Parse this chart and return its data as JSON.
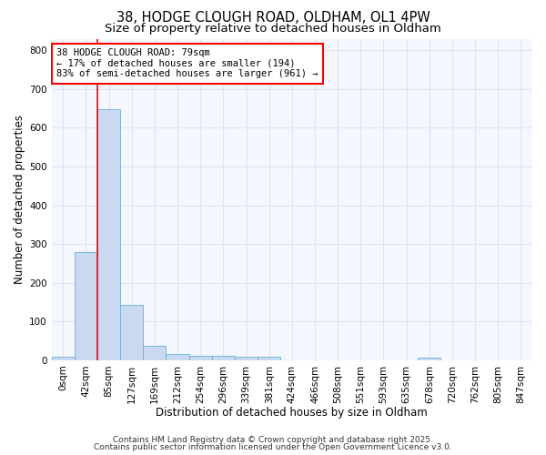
{
  "title_line1": "38, HODGE CLOUGH ROAD, OLDHAM, OL1 4PW",
  "title_line2": "Size of property relative to detached houses in Oldham",
  "xlabel": "Distribution of detached houses by size in Oldham",
  "ylabel": "Number of detached properties",
  "bar_labels": [
    "0sqm",
    "42sqm",
    "85sqm",
    "127sqm",
    "169sqm",
    "212sqm",
    "254sqm",
    "296sqm",
    "339sqm",
    "381sqm",
    "424sqm",
    "466sqm",
    "508sqm",
    "551sqm",
    "593sqm",
    "635sqm",
    "678sqm",
    "720sqm",
    "762sqm",
    "805sqm",
    "847sqm"
  ],
  "bar_values": [
    8,
    278,
    648,
    143,
    37,
    17,
    11,
    11,
    9,
    8,
    0,
    0,
    0,
    0,
    0,
    0,
    6,
    0,
    0,
    0,
    0
  ],
  "bar_color": "#c8d9f0",
  "bar_edgecolor": "#6baed6",
  "vline_x": 1.5,
  "vline_color": "red",
  "annotation_text": "38 HODGE CLOUGH ROAD: 79sqm\n← 17% of detached houses are smaller (194)\n83% of semi-detached houses are larger (961) →",
  "annotation_box_color": "white",
  "annotation_box_edgecolor": "red",
  "ylim": [
    0,
    830
  ],
  "yticks": [
    0,
    100,
    200,
    300,
    400,
    500,
    600,
    700,
    800
  ],
  "footer_line1": "Contains HM Land Registry data © Crown copyright and database right 2025.",
  "footer_line2": "Contains public sector information licensed under the Open Government Licence v3.0.",
  "background_color": "#ffffff",
  "plot_bg_color": "#f5f7ff",
  "grid_color": "#dde4f5",
  "title_fontsize": 10.5,
  "subtitle_fontsize": 9.5,
  "axis_label_fontsize": 8.5,
  "tick_fontsize": 7.5,
  "annotation_fontsize": 7.5,
  "footer_fontsize": 6.5
}
